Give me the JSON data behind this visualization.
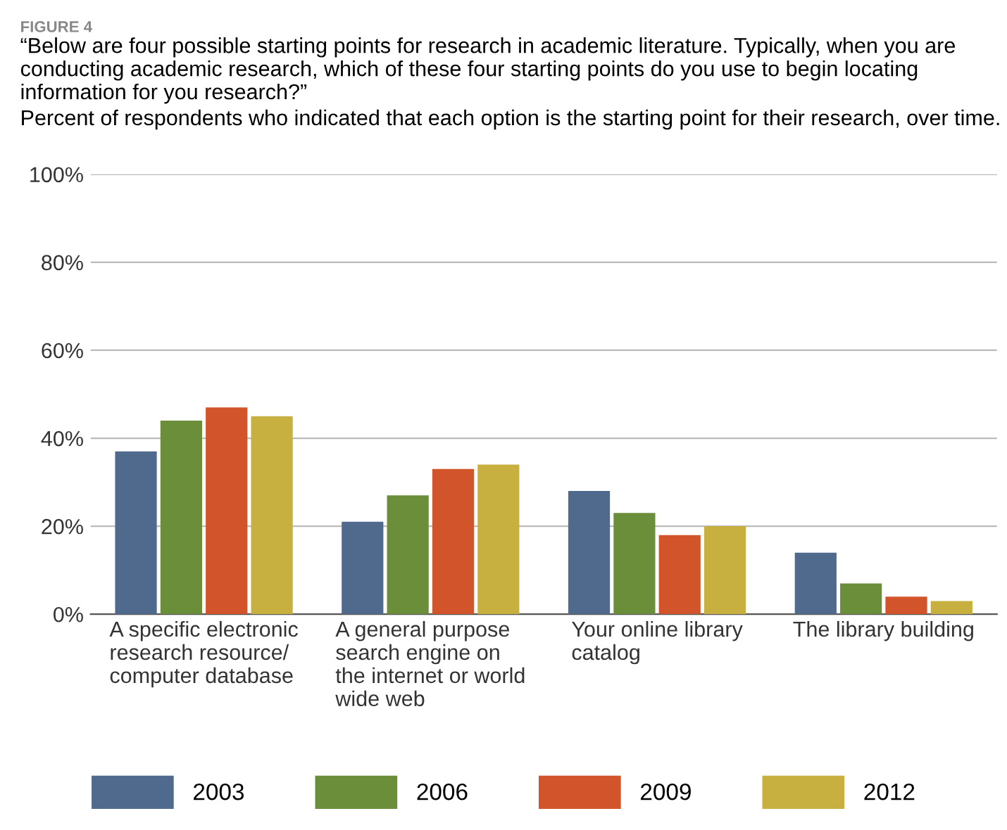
{
  "chart_data": {
    "type": "bar",
    "title": "“Below are four possible starting points for research in academic literature. Typically, when you are conducting academic research, which of these four starting points do you use to begin locating information for you research?”",
    "subtitle": "Percent of respondents who indicated that each option is the starting point for their research, over time.",
    "annotations": [
      "FIGURE 4"
    ],
    "categories": [
      "A specific electronic\nresearch resource/\ncomputer database",
      "A general purpose\nsearch engine on\nthe internet or world\nwide web",
      "Your online library\ncatalog",
      "The library building"
    ],
    "series": [
      {
        "name": "2003",
        "color": "#4f6a8c",
        "values": [
          37,
          21,
          28,
          14
        ]
      },
      {
        "name": "2006",
        "color": "#6b8e3a",
        "values": [
          44,
          27,
          23,
          7
        ]
      },
      {
        "name": "2009",
        "color": "#d2542a",
        "values": [
          47,
          33,
          18,
          4
        ]
      },
      {
        "name": "2012",
        "color": "#c8b040",
        "values": [
          45,
          34,
          20,
          3
        ]
      }
    ],
    "ylim": [
      0,
      100
    ],
    "yticks": [
      {
        "value": 0,
        "label": "0%"
      },
      {
        "value": 20,
        "label": "20%"
      },
      {
        "value": 40,
        "label": "40%"
      },
      {
        "value": 60,
        "label": "60%"
      },
      {
        "value": 80,
        "label": "80%"
      },
      {
        "value": 100,
        "label": "100%"
      }
    ],
    "grid": "y",
    "legend": "bottom"
  }
}
